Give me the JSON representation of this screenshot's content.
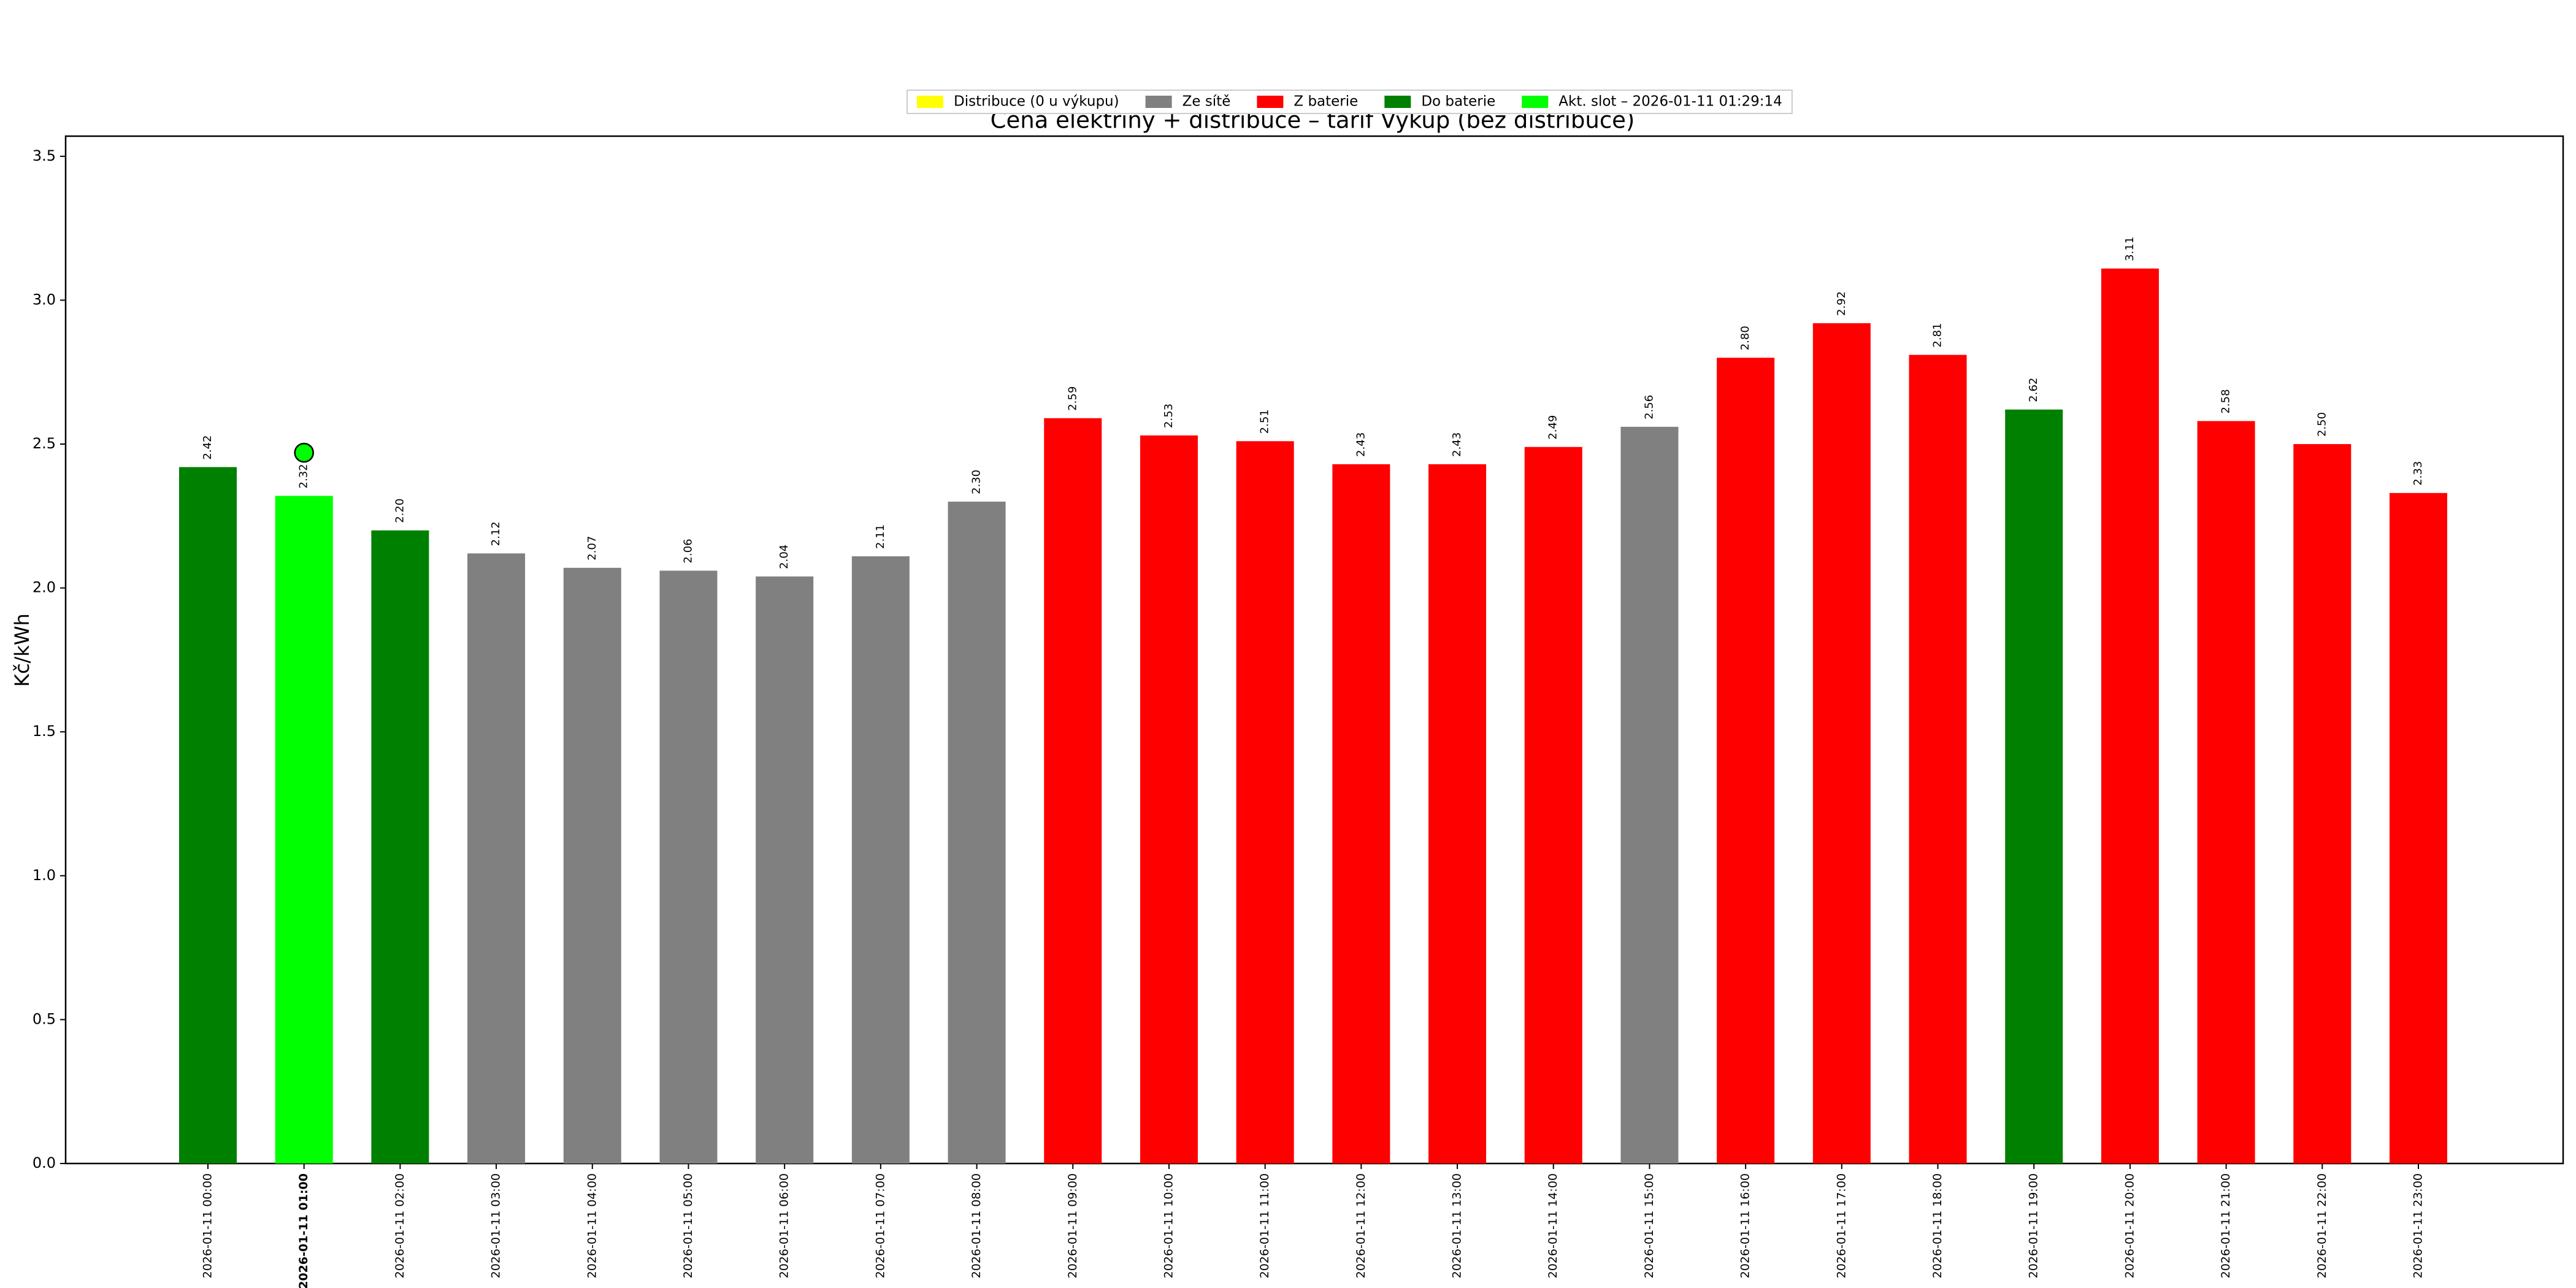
{
  "chart_data": {
    "type": "bar",
    "title": "Cena elektřiny + distribuce – tarif Výkup (bez distribuce)",
    "y_label": "Kč/kWh",
    "categories": [
      "2026-01-11 00:00",
      "2026-01-11 01:00",
      "2026-01-11 02:00",
      "2026-01-11 03:00",
      "2026-01-11 04:00",
      "2026-01-11 05:00",
      "2026-01-11 06:00",
      "2026-01-11 07:00",
      "2026-01-11 08:00",
      "2026-01-11 09:00",
      "2026-01-11 10:00",
      "2026-01-11 11:00",
      "2026-01-11 12:00",
      "2026-01-11 13:00",
      "2026-01-11 14:00",
      "2026-01-11 15:00",
      "2026-01-11 16:00",
      "2026-01-11 17:00",
      "2026-01-11 18:00",
      "2026-01-11 19:00",
      "2026-01-11 20:00",
      "2026-01-11 21:00",
      "2026-01-11 22:00",
      "2026-01-11 23:00"
    ],
    "highlight_category": "2026-01-11 01:00",
    "series": [
      {
        "name": "Distribuce (0 u výkupu)",
        "color": "#ffff00",
        "values": [
          null,
          null,
          null,
          null,
          null,
          null,
          null,
          null,
          null,
          null,
          null,
          null,
          null,
          null,
          null,
          null,
          null,
          null,
          null,
          null,
          null,
          null,
          null,
          null
        ],
        "value_labels": [
          null,
          null,
          null,
          null,
          null,
          null,
          null,
          null,
          null,
          null,
          null,
          null,
          null,
          null,
          null,
          null,
          null,
          null,
          null,
          null,
          null,
          null,
          null,
          null
        ]
      },
      {
        "name": "Ze sítě",
        "color": "#808080",
        "values": [
          null,
          null,
          null,
          2.12,
          2.07,
          2.06,
          2.04,
          2.11,
          2.3,
          null,
          null,
          null,
          null,
          null,
          null,
          2.56,
          null,
          null,
          null,
          null,
          null,
          null,
          null,
          null
        ],
        "value_labels": [
          null,
          null,
          null,
          "2.12",
          "2.07",
          "2.06",
          "2.04",
          "2.11",
          "2.30",
          null,
          null,
          null,
          null,
          null,
          null,
          "2.56",
          null,
          null,
          null,
          null,
          null,
          null,
          null,
          null
        ]
      },
      {
        "name": "Z baterie",
        "color": "#ff0000",
        "values": [
          null,
          null,
          null,
          null,
          null,
          null,
          null,
          null,
          null,
          2.59,
          2.53,
          2.51,
          2.43,
          2.43,
          2.49,
          null,
          2.8,
          2.92,
          2.81,
          null,
          3.11,
          2.58,
          2.5,
          2.33
        ],
        "value_labels": [
          null,
          null,
          null,
          null,
          null,
          null,
          null,
          null,
          null,
          "2.59",
          "2.53",
          "2.51",
          "2.43",
          "2.43",
          "2.49",
          null,
          "2.80",
          "2.92",
          "2.81",
          null,
          "3.11",
          "2.58",
          "2.50",
          "2.33"
        ]
      },
      {
        "name": "Do baterie",
        "color": "#008000",
        "values": [
          2.42,
          null,
          2.2,
          null,
          null,
          null,
          null,
          null,
          null,
          null,
          null,
          null,
          null,
          null,
          null,
          null,
          null,
          null,
          null,
          2.62,
          null,
          null,
          null,
          null
        ],
        "value_labels": [
          "2.42",
          null,
          "2.20",
          null,
          null,
          null,
          null,
          null,
          null,
          null,
          null,
          null,
          null,
          null,
          null,
          null,
          null,
          null,
          null,
          "2.62",
          null,
          null,
          null,
          null
        ]
      },
      {
        "name": "Akt. slot – 2026-01-11 01:29:14",
        "color": "#00ff00",
        "values": [
          null,
          2.32,
          null,
          null,
          null,
          null,
          null,
          null,
          null,
          null,
          null,
          null,
          null,
          null,
          null,
          null,
          null,
          null,
          null,
          null,
          null,
          null,
          null,
          null
        ],
        "value_labels": [
          null,
          "2.32",
          null,
          null,
          null,
          null,
          null,
          null,
          null,
          null,
          null,
          null,
          null,
          null,
          null,
          null,
          null,
          null,
          null,
          null,
          null,
          null,
          null,
          null
        ]
      }
    ],
    "marker": {
      "x": "2026-01-11 01:00",
      "y": 2.47,
      "color": "#00ff00"
    },
    "ylim": [
      0,
      3.57
    ],
    "yticks": [
      {
        "value": 0,
        "label": "0.0"
      },
      0.5,
      {
        "value": 1,
        "label": "1.0"
      },
      1.5,
      {
        "value": 2,
        "label": "2.0"
      },
      2.5,
      {
        "value": 3,
        "label": "3.0"
      },
      3.5
    ],
    "legend_position": "top"
  }
}
